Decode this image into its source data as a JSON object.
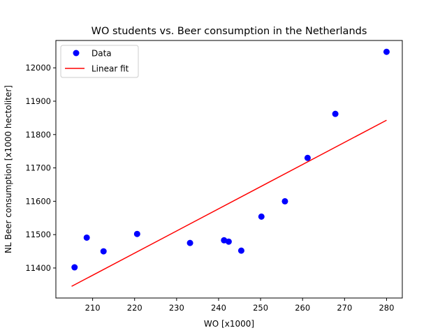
{
  "chart_data": {
    "type": "scatter",
    "title": "WO students vs. Beer consumption in the Netherlands",
    "xlabel": "WO [x1000]",
    "ylabel": "NL Beer consumption [x1000 hectoliter]",
    "xlim": [
      201.25,
      283.75
    ],
    "ylim": [
      11310,
      12082
    ],
    "x_ticks": [
      210,
      220,
      230,
      240,
      250,
      260,
      270,
      280
    ],
    "y_ticks": [
      11400,
      11500,
      11600,
      11700,
      11800,
      11900,
      12000
    ],
    "grid": false,
    "legend_position": "top-left",
    "series": [
      {
        "name": "Data",
        "kind": "scatter",
        "color": "#0000ff",
        "x": [
          205.7,
          208.6,
          212.6,
          220.6,
          233.2,
          241.3,
          242.4,
          245.4,
          250.2,
          255.8,
          261.2,
          267.8,
          280.0
        ],
        "y": [
          11402,
          11491,
          11450,
          11502,
          11475,
          11483,
          11479,
          11452,
          11554,
          11600,
          11730,
          11862,
          12048
        ]
      },
      {
        "name": "Linear fit",
        "kind": "line",
        "color": "#ff0000",
        "x": [
          205.0,
          280.0
        ],
        "y": [
          11345,
          11843
        ]
      }
    ]
  }
}
